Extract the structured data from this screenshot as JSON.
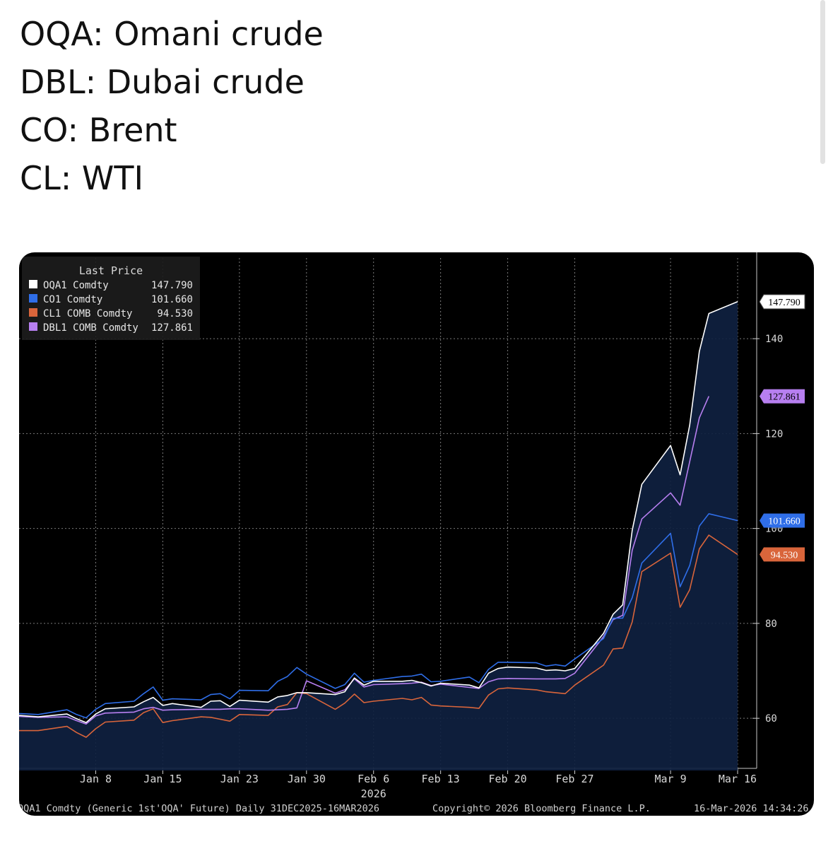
{
  "caption": {
    "lines": [
      "OQA: Omani crude",
      "DBL: Dubai crude",
      "CO: Brent",
      "CL: WTI"
    ]
  },
  "chart_data": {
    "type": "line",
    "legend_title": "Last Price",
    "legend_placement": "top-left",
    "x": [
      "2025-12-31",
      "2026-01-02",
      "2026-01-05",
      "2026-01-06",
      "2026-01-07",
      "2026-01-08",
      "2026-01-09",
      "2026-01-12",
      "2026-01-13",
      "2026-01-14",
      "2026-01-15",
      "2026-01-16",
      "2026-01-19",
      "2026-01-20",
      "2026-01-21",
      "2026-01-22",
      "2026-01-23",
      "2026-01-26",
      "2026-01-27",
      "2026-01-28",
      "2026-01-29",
      "2026-01-30",
      "2026-02-02",
      "2026-02-03",
      "2026-02-04",
      "2026-02-05",
      "2026-02-06",
      "2026-02-09",
      "2026-02-10",
      "2026-02-11",
      "2026-02-12",
      "2026-02-13",
      "2026-02-16",
      "2026-02-17",
      "2026-02-18",
      "2026-02-19",
      "2026-02-20",
      "2026-02-23",
      "2026-02-24",
      "2026-02-25",
      "2026-02-26",
      "2026-02-27",
      "2026-03-02",
      "2026-03-03",
      "2026-03-04",
      "2026-03-05",
      "2026-03-06",
      "2026-03-09",
      "2026-03-10",
      "2026-03-11",
      "2026-03-12",
      "2026-03-13",
      "2026-03-16"
    ],
    "series": [
      {
        "name": "OQA1 Comdty",
        "last": "147.790",
        "color": "#ffffff",
        "values": [
          60.6,
          60.3,
          60.9,
          59.9,
          59.1,
          60.9,
          62.0,
          62.4,
          63.5,
          64.4,
          62.7,
          63.1,
          62.3,
          63.6,
          63.7,
          62.5,
          63.8,
          63.4,
          64.5,
          64.8,
          65.4,
          65.4,
          65.0,
          65.6,
          68.5,
          67.0,
          67.8,
          67.8,
          68.0,
          67.5,
          66.8,
          67.4,
          67.0,
          66.4,
          69.5,
          70.5,
          70.8,
          70.6,
          70.1,
          70.2,
          70.0,
          70.5,
          77.9,
          81.9,
          83.9,
          99.6,
          109.3,
          117.5,
          111.3,
          121.8,
          137.3,
          145.3,
          147.79
        ]
      },
      {
        "name": "CO1 Comdty",
        "last": "101.660",
        "color": "#2f6ee8",
        "values": [
          61.0,
          60.8,
          61.8,
          60.8,
          60.1,
          61.9,
          63.1,
          63.6,
          65.2,
          66.6,
          63.8,
          64.1,
          63.9,
          65.0,
          65.2,
          64.1,
          65.9,
          65.8,
          67.8,
          68.8,
          70.7,
          69.3,
          66.3,
          67.1,
          69.5,
          67.6,
          68.0,
          68.8,
          68.9,
          69.3,
          67.7,
          67.8,
          68.7,
          67.5,
          70.3,
          71.8,
          71.8,
          71.7,
          71.0,
          71.3,
          71.0,
          72.5,
          76.8,
          81.1,
          81.1,
          85.4,
          92.7,
          99.0,
          87.7,
          92.2,
          100.5,
          103.1,
          101.66
        ]
      },
      {
        "name": "CL1 COMB Comdty",
        "last": "94.530",
        "color": "#d9653b",
        "values": [
          57.4,
          57.4,
          58.3,
          57.0,
          56.0,
          57.8,
          59.2,
          59.6,
          61.2,
          62.0,
          59.1,
          59.5,
          60.3,
          60.2,
          59.8,
          59.4,
          60.8,
          60.6,
          62.4,
          62.9,
          65.4,
          65.2,
          61.9,
          63.2,
          65.1,
          63.3,
          63.6,
          64.2,
          63.9,
          64.4,
          62.8,
          62.6,
          62.3,
          62.1,
          64.9,
          66.2,
          66.4,
          66.0,
          65.6,
          65.4,
          65.2,
          67.0,
          71.2,
          74.6,
          74.8,
          80.3,
          90.9,
          94.8,
          83.4,
          87.1,
          95.7,
          98.6,
          94.53
        ]
      },
      {
        "name": "DBL1 COMB Comdty",
        "last": "127.861",
        "color": "#b77ff0",
        "values": [
          60.4,
          60.2,
          60.3,
          59.5,
          58.8,
          60.5,
          61.1,
          61.3,
          62.0,
          62.3,
          61.7,
          61.8,
          61.9,
          61.9,
          61.9,
          62.0,
          62.0,
          61.7,
          61.8,
          61.9,
          62.2,
          67.9,
          65.3,
          66.0,
          68.3,
          66.6,
          67.1,
          67.3,
          67.4,
          67.6,
          66.9,
          67.2,
          66.5,
          66.3,
          67.7,
          68.3,
          68.4,
          68.3,
          68.3,
          68.3,
          68.4,
          69.5,
          77.2,
          80.8,
          81.7,
          95.4,
          102.0,
          107.5,
          104.9,
          114.1,
          123.3,
          127.861,
          null
        ]
      }
    ],
    "y_axis": {
      "min": 49,
      "max": 157,
      "ticks": [
        60,
        80,
        100,
        120,
        140
      ],
      "side": "right"
    },
    "x_ticks": [
      {
        "date": "2026-01-08",
        "label": "Jan 8"
      },
      {
        "date": "2026-01-15",
        "label": "Jan 15"
      },
      {
        "date": "2026-01-23",
        "label": "Jan 23"
      },
      {
        "date": "2026-01-30",
        "label": "Jan 30"
      },
      {
        "date": "2026-02-06",
        "label": "Feb 6"
      },
      {
        "date": "2026-02-13",
        "label": "Feb 13"
      },
      {
        "date": "2026-02-20",
        "label": "Feb 20"
      },
      {
        "date": "2026-02-27",
        "label": "Feb 27"
      },
      {
        "date": "2026-03-09",
        "label": "Mar 9"
      },
      {
        "date": "2026-03-16",
        "label": "Mar 16"
      }
    ],
    "x_year_label": "2026",
    "grid": true,
    "area_fill_color": "#0f2140",
    "footer": {
      "left": "OQA1 Comdty (Generic 1st'OQA' Future) Daily 31DEC2025-16MAR2026",
      "center": "Copyright© 2026 Bloomberg Finance L.P.",
      "right": "16-Mar-2026 14:34:26"
    }
  }
}
